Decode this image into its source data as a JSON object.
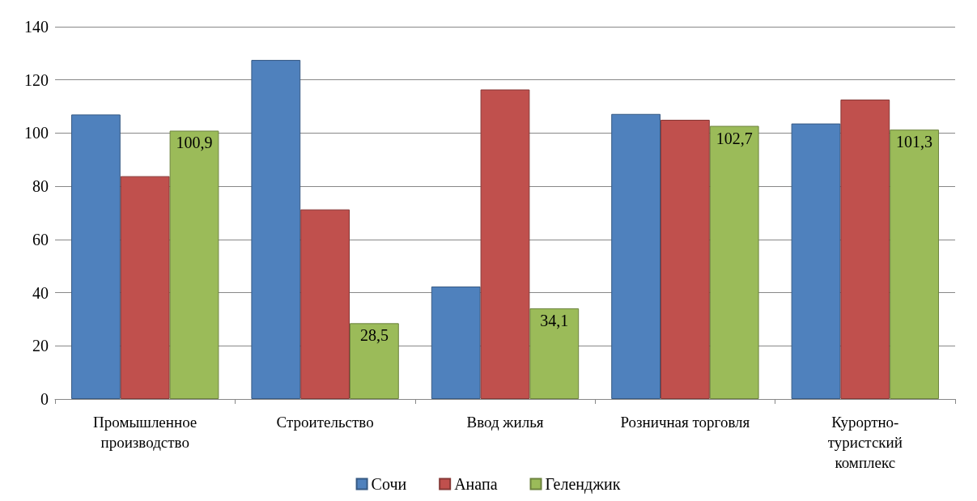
{
  "chart_data": {
    "type": "bar",
    "categories": [
      "Промышленное производство",
      "Строительство",
      "Ввод жилья",
      "Розничная торговля",
      "Курортно-туристский комплекс"
    ],
    "series": [
      {
        "name": "Сочи",
        "color": "#4f81bd",
        "values": [
          107,
          127.5,
          42.3,
          107.2,
          103.6
        ]
      },
      {
        "name": "Анапа",
        "color": "#c0504d",
        "values": [
          83.8,
          71.3,
          116.4,
          105,
          112.6
        ]
      },
      {
        "name": "Геленджик",
        "color": "#9bbb59",
        "values": [
          100.9,
          28.5,
          34.1,
          102.7,
          101.3
        ],
        "value_labels": [
          "100,9",
          "28,5",
          "34,1",
          "102,7",
          "101,3"
        ]
      }
    ],
    "ylim": [
      0,
      140
    ],
    "yticks": [
      0,
      20,
      40,
      60,
      80,
      100,
      120,
      140
    ],
    "grid": "y",
    "legend": "bottom"
  }
}
